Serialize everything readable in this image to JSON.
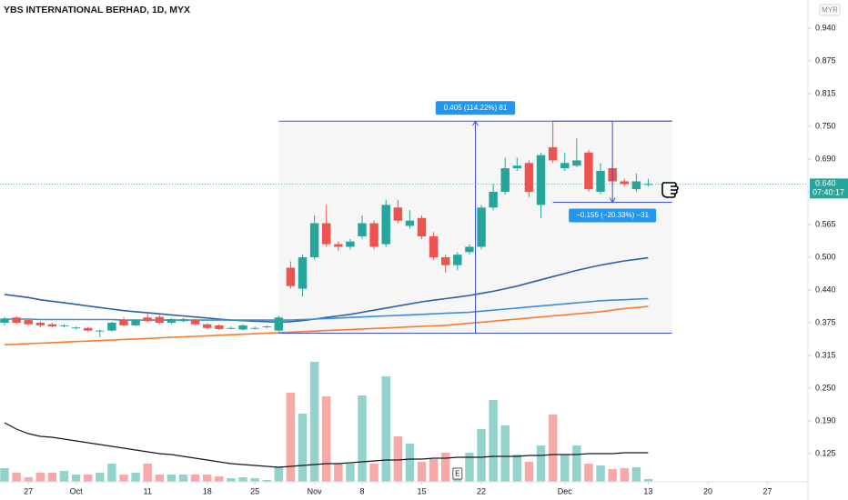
{
  "chart_data": {
    "type": "candlestick",
    "title": "YBS INTERNATIONAL BERHAD, 1D, MYX",
    "currency": "MYR",
    "up_color": "#26a69a",
    "down_color": "#ef5350",
    "volume_up_color": "#93d3cc",
    "volume_down_color": "#f7a9a7",
    "xlim": [
      -0.38,
      67.4
    ],
    "xticks": [
      {
        "value": 2,
        "label": "27"
      },
      {
        "value": 6,
        "label": "Oct"
      },
      {
        "value": 12,
        "label": "11"
      },
      {
        "value": 17,
        "label": "18"
      },
      {
        "value": 21,
        "label": "25"
      },
      {
        "value": 26,
        "label": "Nov"
      },
      {
        "value": 30,
        "label": "8"
      },
      {
        "value": 35,
        "label": "15"
      },
      {
        "value": 40,
        "label": "22"
      },
      {
        "value": 47,
        "label": "Dec"
      },
      {
        "value": 54,
        "label": "13"
      },
      {
        "value": 59,
        "label": "20"
      },
      {
        "value": 64,
        "label": "27"
      }
    ],
    "ylim": [
      0.0625,
      0.9913
    ],
    "yticks": [
      {
        "value": 0.9375,
        "label": "0.940"
      },
      {
        "value": 0.875,
        "label": "0.875"
      },
      {
        "value": 0.8125,
        "label": "0.815"
      },
      {
        "value": 0.75,
        "label": "0.750"
      },
      {
        "value": 0.6875,
        "label": "0.690"
      },
      {
        "value": 0.625,
        "label": "0.625"
      },
      {
        "value": 0.5625,
        "label": "0.565"
      },
      {
        "value": 0.5,
        "label": "0.500"
      },
      {
        "value": 0.4375,
        "label": "0.440"
      },
      {
        "value": 0.375,
        "label": "0.375"
      },
      {
        "value": 0.3125,
        "label": "0.315"
      },
      {
        "value": 0.25,
        "label": "0.250"
      },
      {
        "value": 0.1875,
        "label": "0.190"
      },
      {
        "value": 0.125,
        "label": "0.125"
      }
    ],
    "open": [
      0.375,
      0.385,
      0.38,
      0.375,
      0.372,
      0.37,
      0.366,
      0.365,
      0.36,
      0.36,
      0.38,
      0.37,
      0.385,
      0.386,
      0.375,
      0.378,
      0.38,
      0.372,
      0.37,
      0.365,
      0.362,
      0.365,
      0.368,
      0.36,
      0.48,
      0.44,
      0.5,
      0.565,
      0.525,
      0.52,
      0.54,
      0.565,
      0.525,
      0.595,
      0.56,
      0.575,
      0.54,
      0.5,
      0.485,
      0.51,
      0.52,
      0.595,
      0.625,
      0.67,
      0.68,
      0.6,
      0.71,
      0.67,
      0.675,
      0.7,
      0.625,
      0.67,
      0.645,
      0.63,
      0.64
    ],
    "high": [
      0.386,
      0.388,
      0.382,
      0.378,
      0.375,
      0.372,
      0.368,
      0.367,
      0.362,
      0.377,
      0.385,
      0.382,
      0.395,
      0.39,
      0.384,
      0.384,
      0.382,
      0.374,
      0.372,
      0.368,
      0.372,
      0.368,
      0.37,
      0.388,
      0.492,
      0.505,
      0.58,
      0.6,
      0.53,
      0.535,
      0.58,
      0.57,
      0.61,
      0.61,
      0.59,
      0.58,
      0.548,
      0.505,
      0.51,
      0.525,
      0.6,
      0.64,
      0.69,
      0.69,
      0.685,
      0.7,
      0.76,
      0.7,
      0.727,
      0.705,
      0.68,
      0.675,
      0.65,
      0.66,
      0.65
    ],
    "low": [
      0.37,
      0.372,
      0.37,
      0.366,
      0.366,
      0.366,
      0.362,
      0.358,
      0.347,
      0.358,
      0.368,
      0.368,
      0.376,
      0.372,
      0.372,
      0.376,
      0.37,
      0.363,
      0.361,
      0.362,
      0.36,
      0.362,
      0.364,
      0.358,
      0.44,
      0.425,
      0.495,
      0.52,
      0.512,
      0.515,
      0.535,
      0.515,
      0.52,
      0.565,
      0.555,
      0.535,
      0.495,
      0.47,
      0.475,
      0.505,
      0.515,
      0.59,
      0.62,
      0.665,
      0.615,
      0.575,
      0.68,
      0.665,
      0.672,
      0.625,
      0.62,
      0.64,
      0.635,
      0.625,
      0.635
    ],
    "close": [
      0.383,
      0.375,
      0.372,
      0.37,
      0.368,
      0.37,
      0.366,
      0.36,
      0.36,
      0.375,
      0.37,
      0.38,
      0.378,
      0.375,
      0.382,
      0.382,
      0.372,
      0.365,
      0.363,
      0.365,
      0.37,
      0.365,
      0.368,
      0.385,
      0.445,
      0.5,
      0.565,
      0.525,
      0.52,
      0.53,
      0.565,
      0.52,
      0.6,
      0.57,
      0.57,
      0.54,
      0.5,
      0.485,
      0.505,
      0.52,
      0.595,
      0.625,
      0.67,
      0.675,
      0.625,
      0.695,
      0.685,
      0.68,
      0.685,
      0.63,
      0.665,
      0.645,
      0.64,
      0.645,
      0.64
    ],
    "volume_ylim": [
      0,
      530
    ],
    "volume": [
      15,
      10,
      5,
      10,
      10,
      12,
      8,
      8,
      10,
      20,
      8,
      10,
      20,
      8,
      8,
      8,
      8,
      8,
      6,
      4,
      5,
      4,
      2,
      17,
      98,
      75,
      132,
      94,
      20,
      20,
      95,
      20,
      116,
      50,
      42,
      22,
      25,
      32,
      15,
      32,
      58,
      90,
      62,
      30,
      22,
      40,
      74,
      30,
      40,
      20,
      18,
      14,
      15,
      16,
      3
    ],
    "volume_ma": {
      "color": "#131722",
      "values": [
        65,
        58,
        53,
        50,
        49,
        47,
        45,
        43,
        41,
        39,
        37,
        35,
        33,
        31,
        30,
        28,
        26,
        24,
        22,
        20,
        19,
        18,
        17,
        16,
        17,
        18,
        19,
        20,
        20,
        21,
        22,
        23,
        24,
        24,
        25,
        25,
        26,
        26,
        27,
        27,
        27,
        28,
        28,
        28,
        29,
        29,
        30,
        30,
        30,
        31,
        31,
        31,
        32,
        32,
        32
      ]
    },
    "series": [
      {
        "color": "#2962a8",
        "values": [
          0.429,
          0.426,
          0.423,
          0.419,
          0.416,
          0.413,
          0.41,
          0.407,
          0.404,
          0.401,
          0.398,
          0.396,
          0.394,
          0.392,
          0.39,
          0.388,
          0.386,
          0.384,
          0.382,
          0.38,
          0.379,
          0.378,
          0.377,
          0.376,
          0.377,
          0.379,
          0.382,
          0.385,
          0.388,
          0.391,
          0.395,
          0.399,
          0.403,
          0.407,
          0.411,
          0.415,
          0.418,
          0.421,
          0.424,
          0.427,
          0.431,
          0.435,
          0.44,
          0.445,
          0.451,
          0.457,
          0.463,
          0.469,
          0.475,
          0.48,
          0.485,
          0.489,
          0.493,
          0.496,
          0.499
        ]
      },
      {
        "color": "#3d8fd1",
        "values": [
          0.382,
          0.382,
          0.382,
          0.381,
          0.381,
          0.381,
          0.381,
          0.381,
          0.381,
          0.381,
          0.38,
          0.38,
          0.38,
          0.38,
          0.38,
          0.38,
          0.38,
          0.38,
          0.38,
          0.38,
          0.38,
          0.38,
          0.38,
          0.38,
          0.38,
          0.381,
          0.382,
          0.383,
          0.384,
          0.385,
          0.386,
          0.387,
          0.388,
          0.389,
          0.39,
          0.391,
          0.392,
          0.393,
          0.394,
          0.395,
          0.397,
          0.399,
          0.401,
          0.403,
          0.405,
          0.407,
          0.409,
          0.411,
          0.413,
          0.415,
          0.417,
          0.418,
          0.419,
          0.42,
          0.421
        ]
      },
      {
        "color": "#f57c2c",
        "values": [
          0.333,
          0.334,
          0.335,
          0.336,
          0.337,
          0.338,
          0.339,
          0.34,
          0.341,
          0.342,
          0.343,
          0.344,
          0.345,
          0.346,
          0.347,
          0.348,
          0.349,
          0.35,
          0.351,
          0.352,
          0.353,
          0.354,
          0.355,
          0.356,
          0.357,
          0.358,
          0.359,
          0.36,
          0.361,
          0.362,
          0.363,
          0.364,
          0.365,
          0.366,
          0.367,
          0.368,
          0.369,
          0.37,
          0.372,
          0.374,
          0.376,
          0.378,
          0.38,
          0.382,
          0.384,
          0.386,
          0.388,
          0.39,
          0.392,
          0.394,
          0.396,
          0.399,
          0.402,
          0.404,
          0.406
        ]
      }
    ],
    "last_price": {
      "value": 0.64,
      "label": "0.640"
    },
    "countdown": "07:40:17",
    "event": {
      "index": 38,
      "label": "E"
    },
    "measures": [
      {
        "from": 0.355,
        "to": 0.76,
        "start": 23,
        "end": 56,
        "label": "0.405 (114.22%) 81"
      },
      {
        "from": 0.76,
        "to": 0.605,
        "start": 46,
        "end": 56,
        "label": "−0.155 (−20.33%) −31"
      }
    ]
  }
}
